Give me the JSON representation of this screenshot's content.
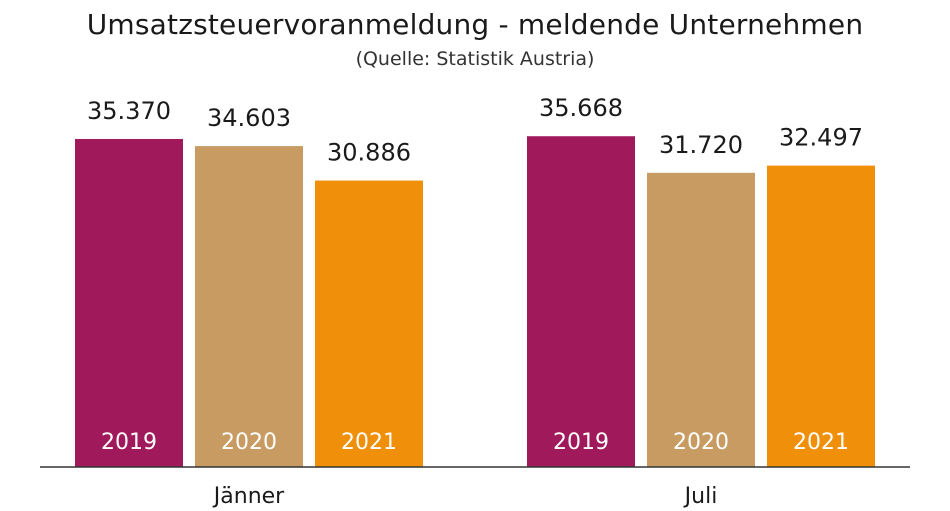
{
  "chart_data": {
    "type": "bar",
    "title": "Umsatzsteuervoranmeldung - meldende Unternehmen",
    "subtitle": "(Quelle: Statistik Austria)",
    "categories": [
      "Jänner",
      "Juli"
    ],
    "series": [
      {
        "name": "2019",
        "color": "#a0195a",
        "values": [
          35370,
          35668
        ],
        "labels": [
          "35.370",
          "35.668"
        ]
      },
      {
        "name": "2020",
        "color": "#c89b63",
        "values": [
          34603,
          31720
        ],
        "labels": [
          "34.603",
          "31.720"
        ]
      },
      {
        "name": "2021",
        "color": "#f0900a",
        "values": [
          30886,
          32497
        ],
        "labels": [
          "30.886",
          "32.497"
        ]
      }
    ],
    "ylim": [
      0,
      42000
    ],
    "grid": false,
    "legend": "none"
  }
}
